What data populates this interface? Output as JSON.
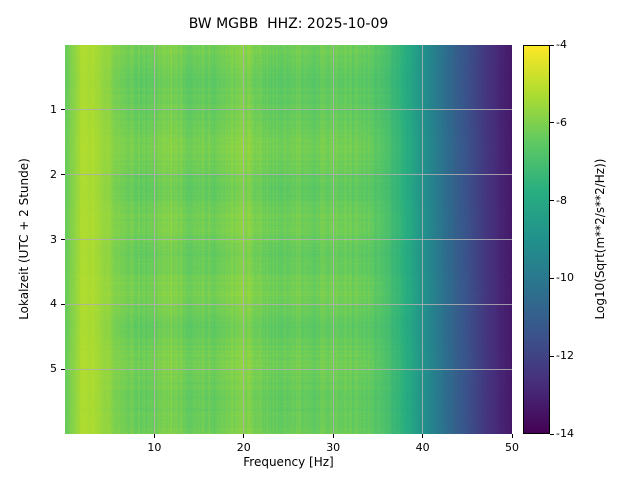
{
  "chart_data": {
    "type": "heatmap",
    "title": "BW MGBB  HHZ: 2025-10-09",
    "xlabel": "Frequency [Hz]",
    "ylabel": "Lokalzeit (UTC + 2 Stunde)",
    "x_range_hz": [
      0,
      50
    ],
    "y_range_hours": [
      0,
      6
    ],
    "x_ticks": [
      10,
      20,
      30,
      40,
      50
    ],
    "y_ticks": [
      1,
      2,
      3,
      4,
      5
    ],
    "grid": true,
    "colorbar": {
      "label": "Log10(Sqrt(m**2/s**2/Hz))",
      "ticks": [
        -4,
        -6,
        -8,
        -10,
        -12,
        -14
      ],
      "vmin": -14,
      "vmax": -4,
      "colormap": "viridis"
    },
    "freq_bins_hz": [
      0,
      2,
      4,
      6,
      8,
      10,
      12,
      14,
      16,
      18,
      20,
      22,
      24,
      26,
      28,
      30,
      32,
      34,
      36,
      38,
      40,
      42,
      44,
      46,
      48,
      50
    ],
    "base_spectrum_log10": [
      -6.3,
      -5.1,
      -5.4,
      -5.9,
      -6.1,
      -6.0,
      -5.8,
      -6.1,
      -6.1,
      -5.9,
      -5.6,
      -6.0,
      -6.1,
      -6.0,
      -6.1,
      -6.0,
      -6.1,
      -6.2,
      -6.8,
      -7.6,
      -8.8,
      -10.0,
      -11.0,
      -11.9,
      -12.7,
      -13.3
    ],
    "time_rows_hours": [
      0.25,
      0.75,
      1.25,
      1.75,
      2.25,
      2.75,
      3.25,
      3.75,
      4.25,
      4.75,
      5.25,
      5.75
    ],
    "row_offsets_log10": [
      -0.15,
      -0.45,
      -0.3,
      -0.05,
      -0.4,
      -0.1,
      -0.35,
      -0.05,
      -0.4,
      -0.1,
      -0.35,
      -0.2
    ],
    "offset_mask": [
      0.2,
      0.2,
      0.3,
      0.8,
      1,
      1,
      1,
      1,
      1,
      1,
      1,
      1,
      1,
      1,
      1,
      1,
      1,
      1,
      0.6,
      0.4,
      0.3,
      0.25,
      0.2,
      0.15,
      0.1,
      0.1
    ]
  },
  "style": {
    "viridis_stops": [
      "#440154",
      "#472d7b",
      "#3b528b",
      "#2c728e",
      "#21918c",
      "#28ae80",
      "#5ec962",
      "#addc30",
      "#fde725"
    ],
    "grid_color": "#b0b0b0",
    "text_color": "#000000",
    "background": "#ffffff"
  }
}
